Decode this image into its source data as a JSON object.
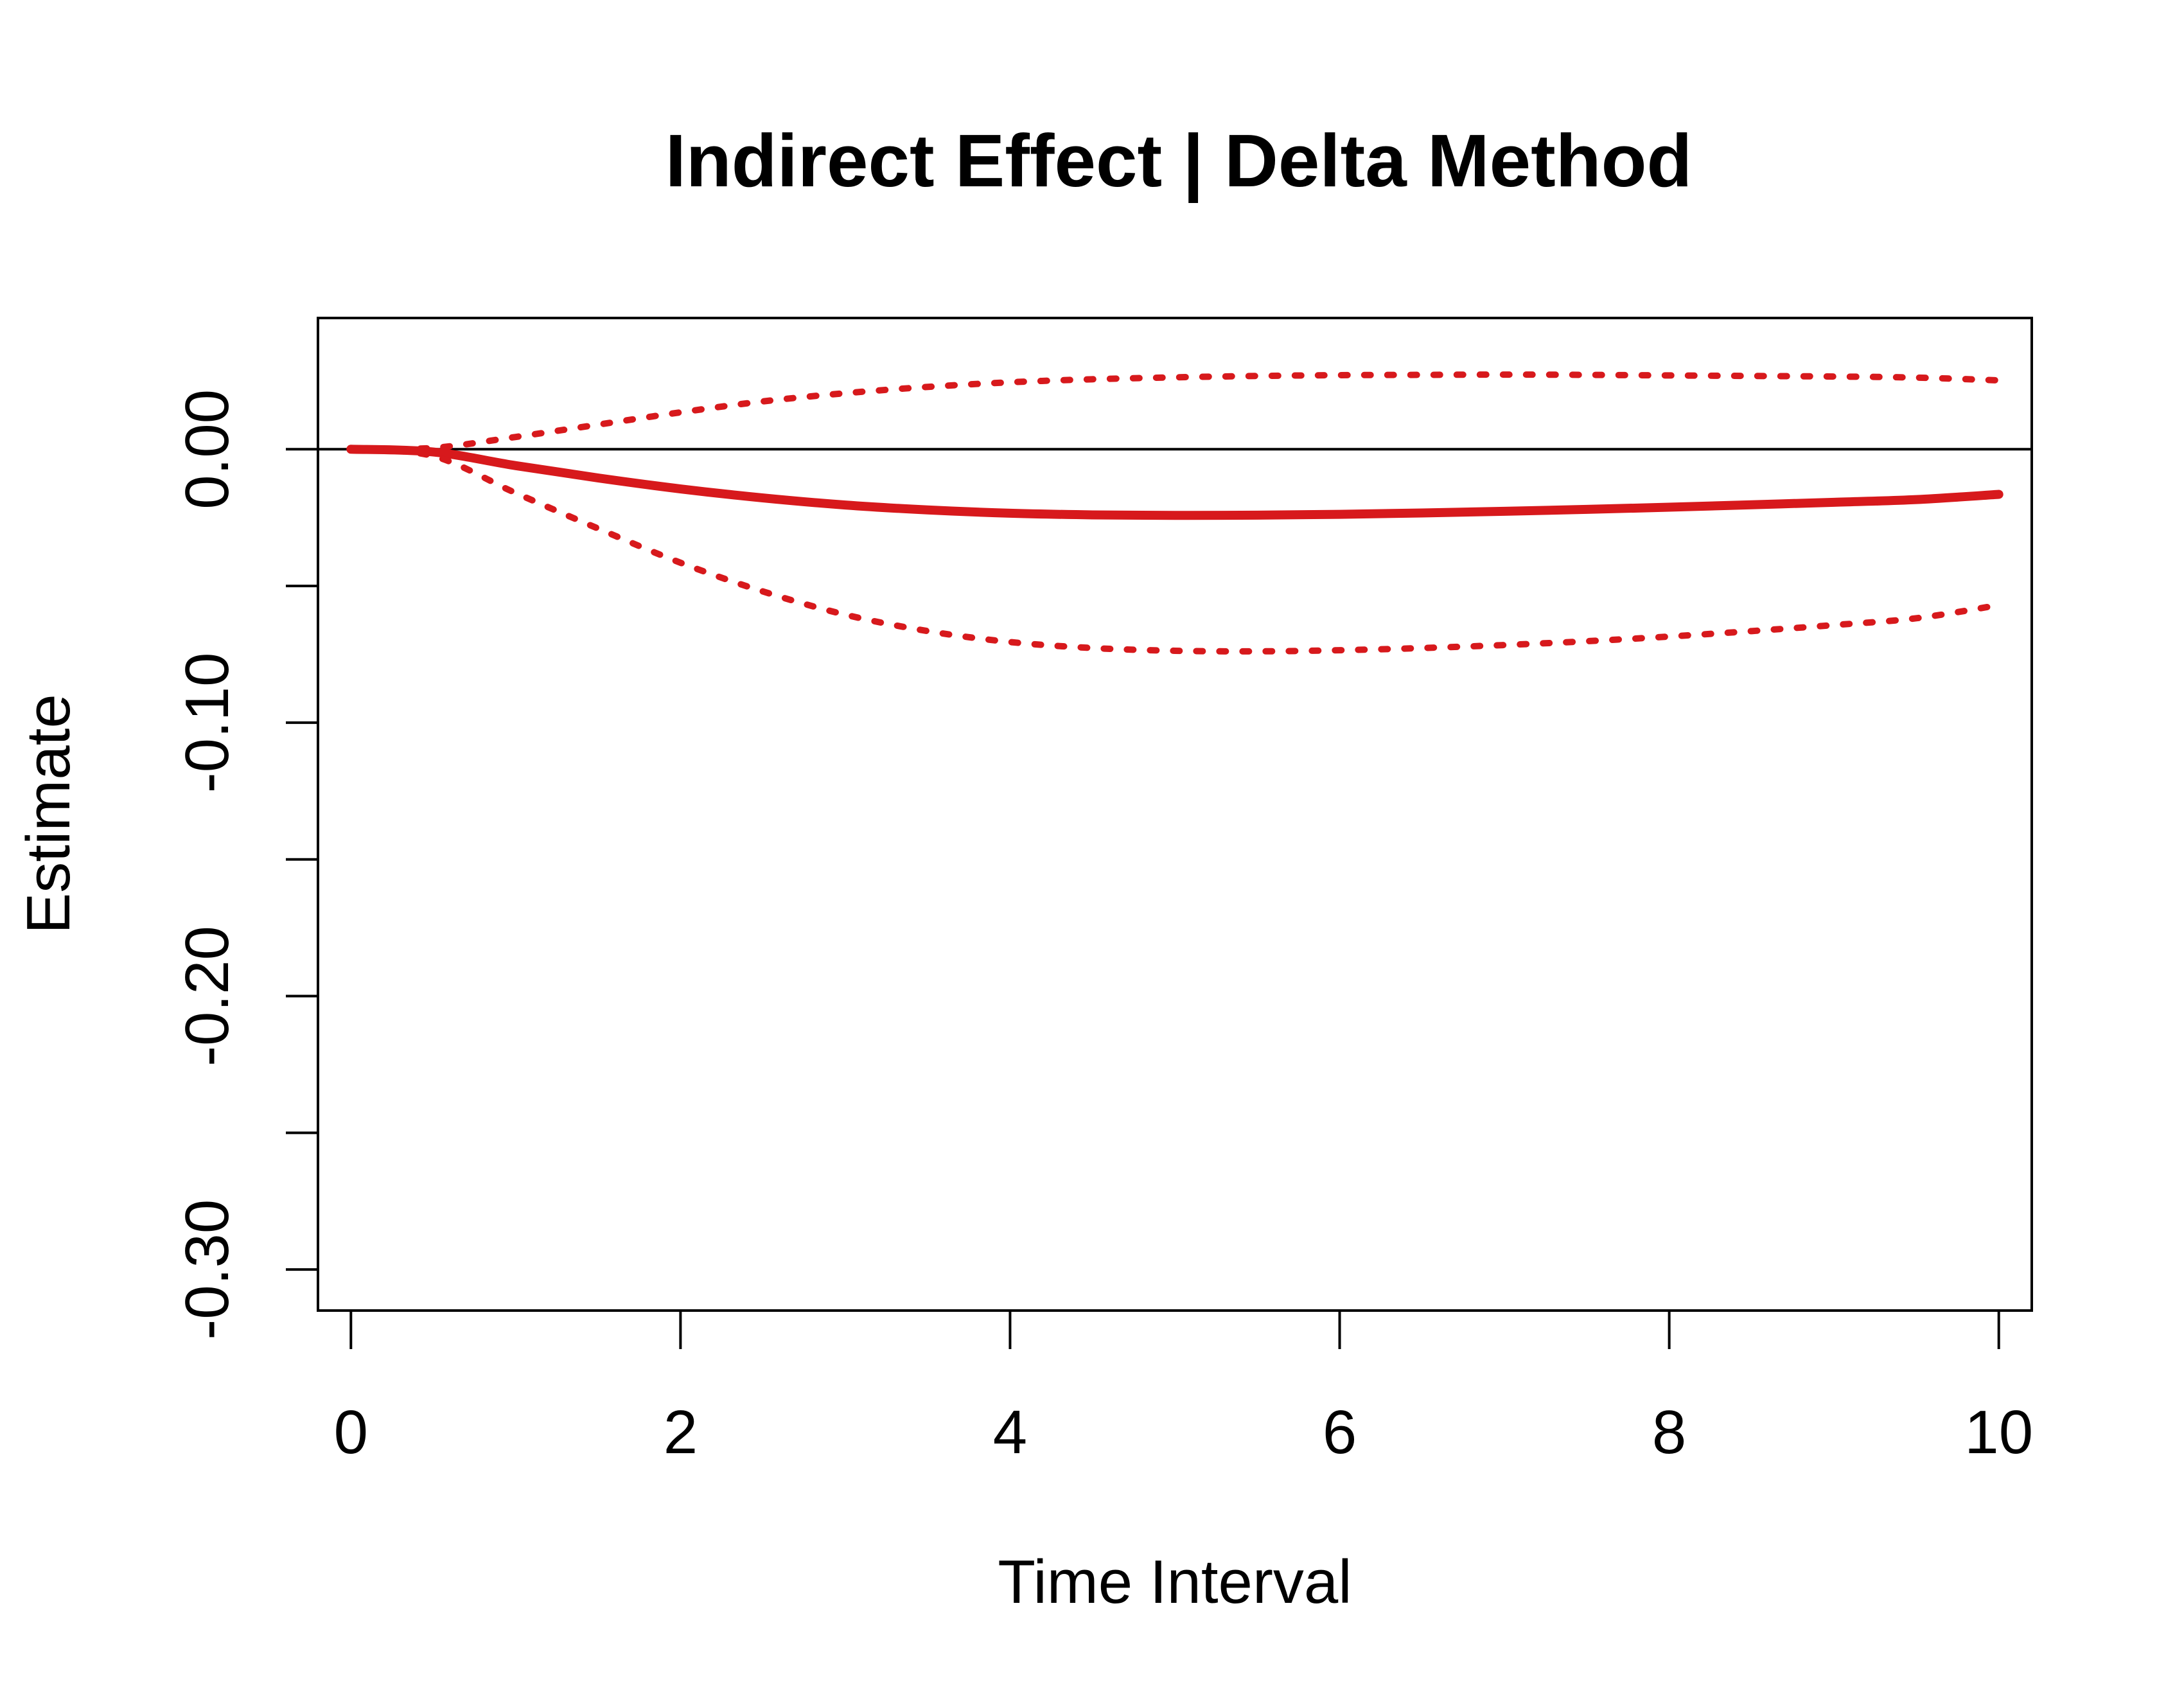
{
  "chart_data": {
    "type": "line",
    "title": "Indirect Effect | Delta Method",
    "xlabel": "Time Interval",
    "ylabel": "Estimate",
    "xlim": [
      -0.2,
      10.2
    ],
    "ylim": [
      -0.315,
      0.048
    ],
    "x_ticks": [
      0,
      2,
      4,
      6,
      8,
      10
    ],
    "x_tick_labels": [
      "0",
      "2",
      "4",
      "6",
      "8",
      "10"
    ],
    "y_ticks": [
      0.0,
      -0.05,
      -0.1,
      -0.15,
      -0.2,
      -0.25,
      -0.3
    ],
    "y_tick_labels": [
      "0.00",
      "",
      "-0.10",
      "",
      "-0.20",
      "",
      "-0.30"
    ],
    "reference_line": {
      "y": 0,
      "color": "#000000"
    },
    "grid": false,
    "x": [
      0,
      0.5,
      1,
      1.5,
      2,
      2.5,
      3,
      3.5,
      4,
      4.5,
      5,
      5.5,
      6,
      6.5,
      7,
      7.5,
      8,
      8.5,
      9,
      9.5,
      10
    ],
    "series": [
      {
        "role": "estimate",
        "style": "solid",
        "color": "#d7191c",
        "values": [
          0,
          -0.001,
          -0.006,
          -0.0105,
          -0.0145,
          -0.0178,
          -0.0204,
          -0.0222,
          -0.0234,
          -0.024,
          -0.0242,
          -0.0241,
          -0.0238,
          -0.0233,
          -0.0227,
          -0.022,
          -0.0212,
          -0.0203,
          -0.0194,
          -0.0184,
          -0.0165
        ]
      },
      {
        "role": "upper",
        "style": "dotted",
        "color": "#d7191c",
        "values": [
          0,
          0.0005,
          0.0045,
          0.009,
          0.0135,
          0.0175,
          0.0205,
          0.0228,
          0.0245,
          0.0256,
          0.0263,
          0.0268,
          0.0271,
          0.0272,
          0.0273,
          0.0272,
          0.027,
          0.0268,
          0.0266,
          0.0262,
          0.0252
        ]
      },
      {
        "role": "lower",
        "style": "dotted",
        "color": "#d7191c",
        "values": [
          0,
          -0.0025,
          -0.016,
          -0.029,
          -0.0415,
          -0.052,
          -0.0605,
          -0.0665,
          -0.0705,
          -0.0727,
          -0.0737,
          -0.0739,
          -0.0735,
          -0.0727,
          -0.0716,
          -0.0702,
          -0.0685,
          -0.0665,
          -0.0643,
          -0.0618,
          -0.057
        ]
      }
    ]
  }
}
